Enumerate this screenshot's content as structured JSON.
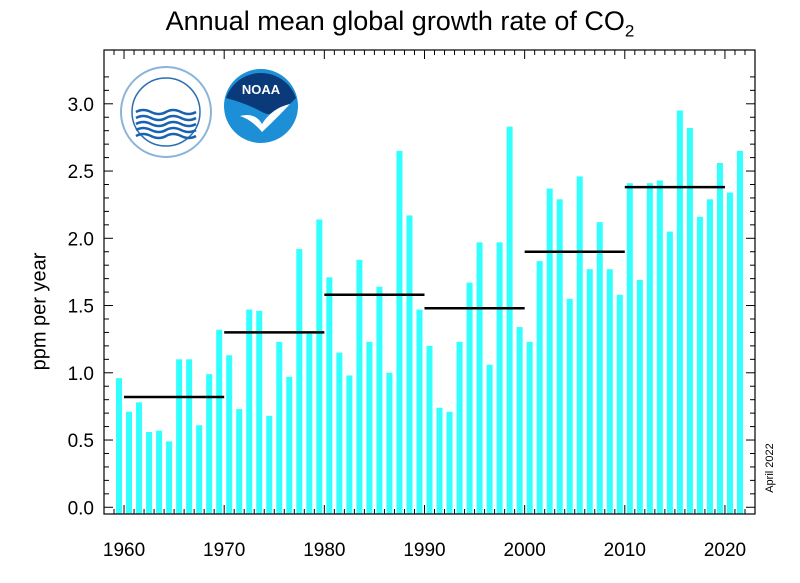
{
  "chart_data": {
    "type": "bar",
    "title": "Annual mean global growth rate of CO",
    "title_subscript": "2",
    "ylabel": "ppm per year",
    "xlabel": "",
    "annotation": "April 2022",
    "bar_color": "#33ffff",
    "decade_line_color": "#000000",
    "xlim": [
      1958,
      2023
    ],
    "ylim": [
      -0.05,
      3.4
    ],
    "xticks": [
      1960,
      1970,
      1980,
      1990,
      2000,
      2010,
      2020
    ],
    "yticks": [
      "0.0",
      "0.5",
      "1.0",
      "1.5",
      "2.0",
      "2.5",
      "3.0"
    ],
    "grid": false,
    "years": [
      1959,
      1960,
      1961,
      1962,
      1963,
      1964,
      1965,
      1966,
      1967,
      1968,
      1969,
      1970,
      1971,
      1972,
      1973,
      1974,
      1975,
      1976,
      1977,
      1978,
      1979,
      1980,
      1981,
      1982,
      1983,
      1984,
      1985,
      1986,
      1987,
      1988,
      1989,
      1990,
      1991,
      1992,
      1993,
      1994,
      1995,
      1996,
      1997,
      1998,
      1999,
      2000,
      2001,
      2002,
      2003,
      2004,
      2005,
      2006,
      2007,
      2008,
      2009,
      2010,
      2011,
      2012,
      2013,
      2014,
      2015,
      2016,
      2017,
      2018,
      2019,
      2020,
      2021
    ],
    "values": [
      0.96,
      0.71,
      0.78,
      0.56,
      0.57,
      0.49,
      1.1,
      1.1,
      0.61,
      0.99,
      1.32,
      1.13,
      0.73,
      1.47,
      1.46,
      0.68,
      1.23,
      0.97,
      1.92,
      1.29,
      2.14,
      1.71,
      1.15,
      0.98,
      1.84,
      1.23,
      1.64,
      1.0,
      2.65,
      2.17,
      1.47,
      1.2,
      0.74,
      0.71,
      1.23,
      1.67,
      1.97,
      1.06,
      1.97,
      2.83,
      1.34,
      1.23,
      1.83,
      2.37,
      2.29,
      1.55,
      2.46,
      1.77,
      2.12,
      1.77,
      1.58,
      2.41,
      1.69,
      2.41,
      2.43,
      2.05,
      2.95,
      2.82,
      2.16,
      2.29,
      2.56,
      2.34,
      2.65
    ],
    "decade_means": [
      {
        "start": 1960,
        "end": 1970,
        "value": 0.82
      },
      {
        "start": 1970,
        "end": 1980,
        "value": 1.3
      },
      {
        "start": 1980,
        "end": 1990,
        "value": 1.58
      },
      {
        "start": 1990,
        "end": 2000,
        "value": 1.48
      },
      {
        "start": 2000,
        "end": 2010,
        "value": 1.9
      },
      {
        "start": 2010,
        "end": 2020,
        "value": 2.38
      }
    ]
  },
  "logos": {
    "scripps": "SCRIPPS INSTITUTION OF OCEANOGRAPHY UCSD",
    "noaa": "NOAA"
  }
}
